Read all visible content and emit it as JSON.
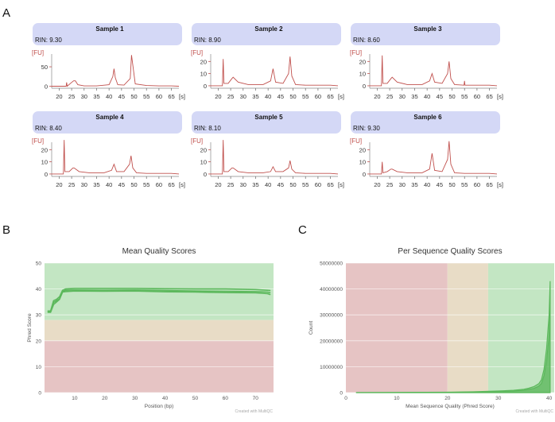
{
  "panel_labels": [
    "A",
    "B",
    "C"
  ],
  "colors": {
    "trace": "#c0504d",
    "header_bg": "#d4d8f6",
    "fu_label": "#c0504d",
    "green_zone": "#c3e6c3",
    "orange_zone": "#e8dcc6",
    "red_zone": "#e6c4c4",
    "series_line": "#5cb85c"
  },
  "chart_data": [
    {
      "type": "line",
      "panel": "A",
      "yunit": "[FU]",
      "xunit": "[s]",
      "xticks": [
        20,
        25,
        30,
        35,
        40,
        45,
        50,
        55,
        60,
        65
      ],
      "xlim": [
        17,
        68
      ],
      "samples": [
        {
          "title": "Sample 1",
          "rin": "RIN: 9.30",
          "yticks": [
            0,
            50
          ],
          "ylim": [
            -5,
            95
          ],
          "x": [
            17,
            22.8,
            23,
            23.2,
            25,
            25.8,
            26.5,
            27.5,
            30,
            35,
            40,
            41.5,
            42,
            42.5,
            43.5,
            46,
            48.5,
            49,
            49.5,
            50.5,
            55,
            60,
            65,
            68
          ],
          "y": [
            0,
            0,
            10,
            0,
            10,
            14,
            14,
            4,
            1,
            1,
            4,
            25,
            45,
            22,
            4,
            3,
            20,
            80,
            55,
            6,
            2,
            1,
            1,
            0
          ]
        },
        {
          "title": "Sample 2",
          "rin": "RIN: 8.90",
          "yticks": [
            0,
            10,
            20
          ],
          "ylim": [
            -2,
            30
          ],
          "x": [
            17,
            21.7,
            22,
            22.3,
            24,
            25.5,
            26,
            28,
            32,
            38,
            41,
            42,
            43,
            46,
            48.2,
            48.8,
            49.5,
            51,
            55,
            60,
            65,
            68
          ],
          "y": [
            0,
            0,
            22,
            2,
            2,
            6,
            7,
            3,
            1,
            1,
            4,
            14,
            3,
            2,
            10,
            24,
            8,
            1,
            0.5,
            0.5,
            0.5,
            0
          ],
          "gap": [
            22.3,
            28
          ]
        },
        {
          "title": "Sample 3",
          "rin": "RIN: 8.60",
          "yticks": [
            0,
            10,
            20
          ],
          "ylim": [
            -2,
            30
          ],
          "x": [
            17,
            21.7,
            22,
            22.3,
            24,
            25.5,
            26,
            28,
            32,
            38,
            41,
            42,
            43,
            46,
            48.2,
            48.8,
            49.5,
            51,
            54.8,
            55,
            55.2,
            60,
            65,
            68
          ],
          "y": [
            0,
            0,
            25,
            2,
            2,
            6,
            7,
            3,
            1,
            1,
            4,
            10,
            3,
            2,
            10,
            20,
            6,
            1,
            0.5,
            4,
            0.5,
            0.5,
            0.5,
            0
          ]
        },
        {
          "title": "Sample 4",
          "rin": "RIN: 8.40",
          "yticks": [
            0,
            10,
            20
          ],
          "ylim": [
            -2,
            30
          ],
          "x": [
            17,
            21.7,
            22,
            22.3,
            24,
            25.5,
            26,
            28,
            32,
            38,
            41,
            42,
            43,
            46,
            48.2,
            48.8,
            49.5,
            51,
            55,
            60,
            65,
            68
          ],
          "y": [
            0,
            0,
            28,
            2,
            2,
            5,
            5,
            2,
            1,
            1,
            3,
            8,
            2,
            2,
            8,
            15,
            5,
            1,
            0.5,
            0.5,
            0.5,
            0
          ]
        },
        {
          "title": "Sample 5",
          "rin": "RIN: 8.10",
          "yticks": [
            0,
            10,
            20
          ],
          "ylim": [
            -2,
            30
          ],
          "x": [
            17,
            21.7,
            22,
            22.3,
            24,
            25.5,
            26,
            28,
            32,
            38,
            41,
            42,
            43,
            46,
            48.2,
            48.8,
            49.5,
            51,
            55,
            60,
            65,
            68
          ],
          "y": [
            0,
            0,
            28,
            2,
            2,
            5,
            5,
            2,
            1,
            1,
            2,
            6,
            2,
            2,
            5,
            11,
            4,
            1,
            0.5,
            0.5,
            0.5,
            0
          ]
        },
        {
          "title": "Sample 6",
          "rin": "RIN: 9.30",
          "yticks": [
            0,
            10,
            20
          ],
          "ylim": [
            -2,
            30
          ],
          "x": [
            17,
            21.7,
            22,
            22.3,
            24,
            25.5,
            26,
            28,
            32,
            38,
            41,
            42,
            43,
            46,
            48.2,
            48.8,
            49.5,
            51,
            55,
            60,
            65,
            68
          ],
          "y": [
            0,
            0,
            10,
            1,
            2,
            4,
            4,
            2,
            1,
            1,
            4,
            17,
            3,
            2,
            12,
            27,
            8,
            1,
            0.5,
            0.5,
            0.5,
            0
          ]
        }
      ]
    },
    {
      "type": "line",
      "panel": "B",
      "title": "Mean Quality Scores",
      "xlabel": "Position (bp)",
      "ylabel": "Phred Score",
      "xlim": [
        0,
        76
      ],
      "ylim": [
        0,
        50
      ],
      "xticks": [
        10,
        20,
        30,
        40,
        50,
        60,
        70
      ],
      "yticks": [
        0,
        10,
        20,
        30,
        40,
        50
      ],
      "zones": [
        {
          "from": 28,
          "to": 50,
          "color": "green"
        },
        {
          "from": 20,
          "to": 28,
          "color": "orange"
        },
        {
          "from": 0,
          "to": 20,
          "color": "red"
        }
      ],
      "series": [
        {
          "x": [
            1,
            2,
            3,
            4,
            5,
            6,
            7,
            10,
            20,
            30,
            40,
            50,
            60,
            70,
            74,
            75
          ],
          "y": [
            31.5,
            31.5,
            35.5,
            36,
            37,
            39.5,
            40,
            40.2,
            40.2,
            40.2,
            40.1,
            40,
            40,
            39.8,
            39.5,
            39.4
          ]
        },
        {
          "x": [
            1,
            2,
            3,
            4,
            5,
            6,
            7,
            10,
            20,
            30,
            40,
            50,
            60,
            70,
            74,
            75
          ],
          "y": [
            31.3,
            31.3,
            34.8,
            35.5,
            36.2,
            39,
            39.5,
            39.6,
            39.5,
            39.6,
            39.4,
            39.2,
            39.1,
            39,
            38.8,
            38.5
          ]
        },
        {
          "x": [
            1,
            2,
            3,
            4,
            5,
            6,
            7,
            10,
            20,
            30,
            40,
            50,
            60,
            70,
            74,
            75
          ],
          "y": [
            31,
            31,
            34,
            35,
            36,
            38.8,
            39,
            39.2,
            39.1,
            39.2,
            38.9,
            38.8,
            38.6,
            38.5,
            38.2,
            37.8
          ]
        }
      ],
      "footer": "Created with MultiQC"
    },
    {
      "type": "area",
      "panel": "C",
      "title": "Per Sequence Quality Scores",
      "xlabel": "Mean Sequence Quality (Phred Score)",
      "ylabel": "Count",
      "xlim": [
        0,
        41
      ],
      "ylim": [
        0,
        50000000
      ],
      "xticks": [
        0,
        10,
        20,
        30,
        40
      ],
      "yticks": [
        0,
        10000000,
        20000000,
        30000000,
        40000000,
        50000000
      ],
      "ytick_labels": [
        "0",
        "10000000",
        "20000000",
        "30000000",
        "40000000",
        "50000000"
      ],
      "zones": [
        {
          "from": 0,
          "to": 20,
          "color": "red"
        },
        {
          "from": 20,
          "to": 28,
          "color": "orange"
        },
        {
          "from": 28,
          "to": 41,
          "color": "green"
        }
      ],
      "series": [
        {
          "x": [
            2,
            10,
            20,
            25,
            30,
            33,
            35,
            36,
            37,
            38,
            38.5,
            39,
            39.5,
            40,
            40.2
          ],
          "y": [
            0,
            50000,
            150000,
            300000,
            600000,
            900000,
            1300000,
            1700000,
            2300000,
            3500000,
            5000000,
            9000000,
            17000000,
            30000000,
            43000000
          ]
        },
        {
          "x": [
            2,
            10,
            20,
            25,
            30,
            33,
            35,
            36,
            37,
            38,
            38.5,
            39,
            39.5,
            40,
            40.2
          ],
          "y": [
            0,
            30000,
            100000,
            200000,
            400000,
            600000,
            900000,
            1200000,
            1600000,
            2500000,
            3500000,
            6500000,
            12000000,
            22000000,
            32000000
          ]
        }
      ],
      "footer": "Created with MultiQC"
    }
  ]
}
